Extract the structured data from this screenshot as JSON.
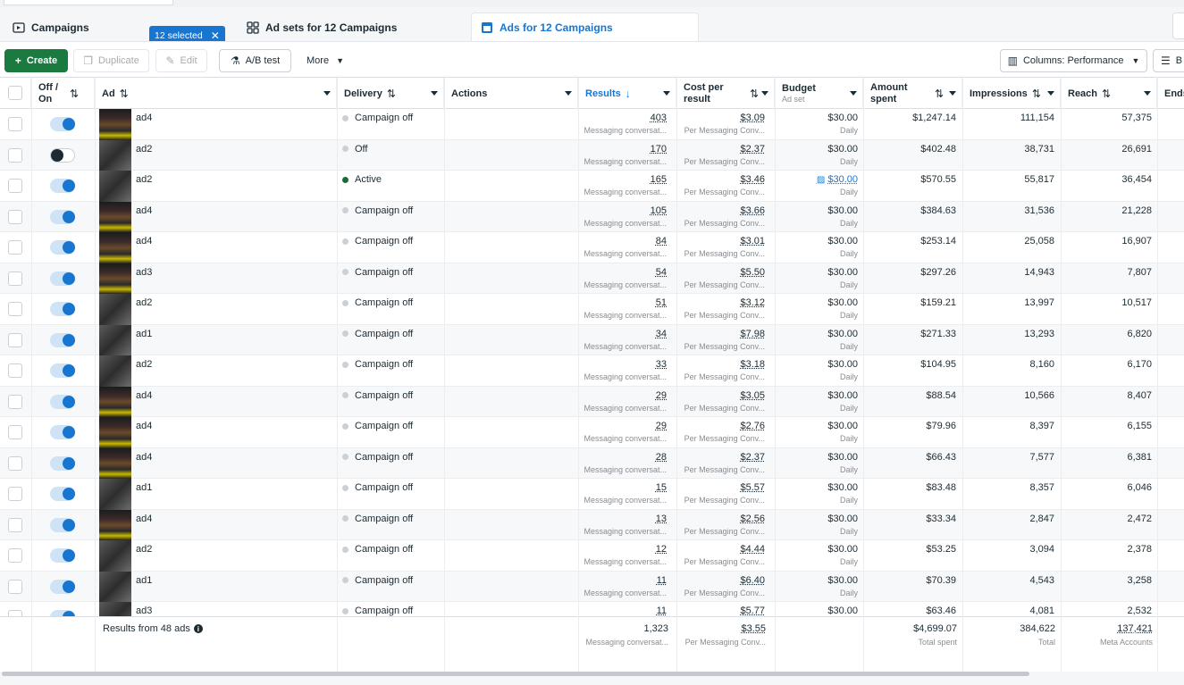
{
  "tabs": {
    "campaigns": "Campaigns",
    "selected_pill": "12 selected",
    "adsets": "Ad sets for 12 Campaigns",
    "ads": "Ads for 12 Campaigns"
  },
  "toolbar": {
    "create": "Create",
    "duplicate": "Duplicate",
    "edit": "Edit",
    "ab_test": "A/B test",
    "more": "More",
    "columns": "Columns: Performance",
    "breakdown_partial": "B"
  },
  "columns": {
    "off_on": "Off / On",
    "ad": "Ad",
    "delivery": "Delivery",
    "actions": "Actions",
    "results": "Results",
    "cost_per_result": "Cost per result",
    "budget": "Budget",
    "budget_sub": "Ad set",
    "amount_spent": "Amount spent",
    "impressions": "Impressions",
    "reach": "Reach",
    "ends": "Ends"
  },
  "labels": {
    "results_sub": "Messaging conversat...",
    "cpr_sub": "Per Messaging Conv...",
    "budget_sub": "Daily"
  },
  "rows": [
    {
      "on": true,
      "thumb": "poster",
      "ad": "ad4",
      "delivery": "Campaign off",
      "active": false,
      "results": "403",
      "cpr": "$3.09",
      "budget": "$30.00",
      "spent": "$1,247.14",
      "impressions": "111,154",
      "reach": "57,375"
    },
    {
      "on": false,
      "thumb": "gray",
      "ad": "ad2",
      "delivery": "Off",
      "active": false,
      "results": "170",
      "cpr": "$2.37",
      "budget": "$30.00",
      "spent": "$402.48",
      "impressions": "38,731",
      "reach": "26,691"
    },
    {
      "on": true,
      "thumb": "gray",
      "ad": "ad2",
      "delivery": "Active",
      "active": true,
      "results": "165",
      "cpr": "$3.46",
      "budget": "$30.00",
      "spent": "$570.55",
      "impressions": "55,817",
      "reach": "36,454"
    },
    {
      "on": true,
      "thumb": "poster",
      "ad": "ad4",
      "delivery": "Campaign off",
      "active": false,
      "results": "105",
      "cpr": "$3.66",
      "budget": "$30.00",
      "spent": "$384.63",
      "impressions": "31,536",
      "reach": "21,228"
    },
    {
      "on": true,
      "thumb": "poster",
      "ad": "ad4",
      "delivery": "Campaign off",
      "active": false,
      "results": "84",
      "cpr": "$3.01",
      "budget": "$30.00",
      "spent": "$253.14",
      "impressions": "25,058",
      "reach": "16,907"
    },
    {
      "on": true,
      "thumb": "poster",
      "ad": "ad3",
      "delivery": "Campaign off",
      "active": false,
      "results": "54",
      "cpr": "$5.50",
      "budget": "$30.00",
      "spent": "$297.26",
      "impressions": "14,943",
      "reach": "7,807"
    },
    {
      "on": true,
      "thumb": "gray",
      "ad": "ad2",
      "delivery": "Campaign off",
      "active": false,
      "results": "51",
      "cpr": "$3.12",
      "budget": "$30.00",
      "spent": "$159.21",
      "impressions": "13,997",
      "reach": "10,517"
    },
    {
      "on": true,
      "thumb": "gray",
      "ad": "ad1",
      "delivery": "Campaign off",
      "active": false,
      "results": "34",
      "cpr": "$7.98",
      "budget": "$30.00",
      "spent": "$271.33",
      "impressions": "13,293",
      "reach": "6,820"
    },
    {
      "on": true,
      "thumb": "gray",
      "ad": "ad2",
      "delivery": "Campaign off",
      "active": false,
      "results": "33",
      "cpr": "$3.18",
      "budget": "$30.00",
      "spent": "$104.95",
      "impressions": "8,160",
      "reach": "6,170"
    },
    {
      "on": true,
      "thumb": "poster",
      "ad": "ad4",
      "delivery": "Campaign off",
      "active": false,
      "results": "29",
      "cpr": "$3.05",
      "budget": "$30.00",
      "spent": "$88.54",
      "impressions": "10,566",
      "reach": "8,407"
    },
    {
      "on": true,
      "thumb": "poster",
      "ad": "ad4",
      "delivery": "Campaign off",
      "active": false,
      "results": "29",
      "cpr": "$2.76",
      "budget": "$30.00",
      "spent": "$79.96",
      "impressions": "8,397",
      "reach": "6,155"
    },
    {
      "on": true,
      "thumb": "poster",
      "ad": "ad4",
      "delivery": "Campaign off",
      "active": false,
      "results": "28",
      "cpr": "$2.37",
      "budget": "$30.00",
      "spent": "$66.43",
      "impressions": "7,577",
      "reach": "6,381"
    },
    {
      "on": true,
      "thumb": "gray",
      "ad": "ad1",
      "delivery": "Campaign off",
      "active": false,
      "results": "15",
      "cpr": "$5.57",
      "budget": "$30.00",
      "spent": "$83.48",
      "impressions": "8,357",
      "reach": "6,046"
    },
    {
      "on": true,
      "thumb": "poster",
      "ad": "ad4",
      "delivery": "Campaign off",
      "active": false,
      "results": "13",
      "cpr": "$2.56",
      "budget": "$30.00",
      "spent": "$33.34",
      "impressions": "2,847",
      "reach": "2,472"
    },
    {
      "on": true,
      "thumb": "gray",
      "ad": "ad2",
      "delivery": "Campaign off",
      "active": false,
      "results": "12",
      "cpr": "$4.44",
      "budget": "$30.00",
      "spent": "$53.25",
      "impressions": "3,094",
      "reach": "2,378"
    },
    {
      "on": true,
      "thumb": "gray",
      "ad": "ad1",
      "delivery": "Campaign off",
      "active": false,
      "results": "11",
      "cpr": "$6.40",
      "budget": "$30.00",
      "spent": "$70.39",
      "impressions": "4,543",
      "reach": "3,258"
    },
    {
      "on": true,
      "thumb": "gray",
      "ad": "ad3",
      "delivery": "Campaign off",
      "active": false,
      "results": "11",
      "cpr": "$5.77",
      "budget": "$30.00",
      "spent": "$63.46",
      "impressions": "4,081",
      "reach": "2,532"
    }
  ],
  "footer": {
    "label": "Results from 48 ads",
    "results": "1,323",
    "results_sub": "Messaging conversat...",
    "cpr": "$3.55",
    "cpr_sub": "Per Messaging Conv...",
    "spent": "$4,699.07",
    "spent_sub": "Total spent",
    "impressions": "384,622",
    "impressions_sub": "Total",
    "reach": "137,421",
    "reach_sub": "Meta Accounts"
  },
  "colors": {
    "accent": "#1876d0",
    "create_green": "#1b7a3f",
    "active_dot": "#1b6b3a"
  }
}
